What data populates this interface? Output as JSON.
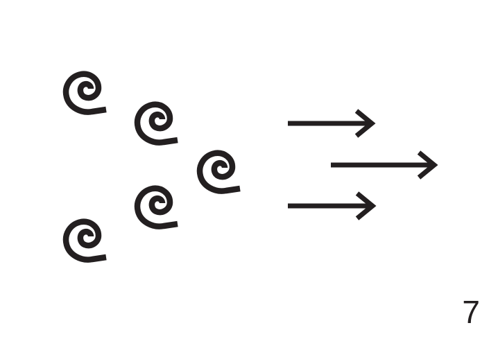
{
  "figure": {
    "page_number": "7",
    "ink_color": "#231f20",
    "background_color": "#ffffff",
    "elements": {
      "swirl_icon_name": "spiral-swirl-icon",
      "swirl_count": 5,
      "arrow_icon_name": "right-arrow-icon",
      "arrow_count": 3,
      "arrow_direction": "right"
    }
  }
}
